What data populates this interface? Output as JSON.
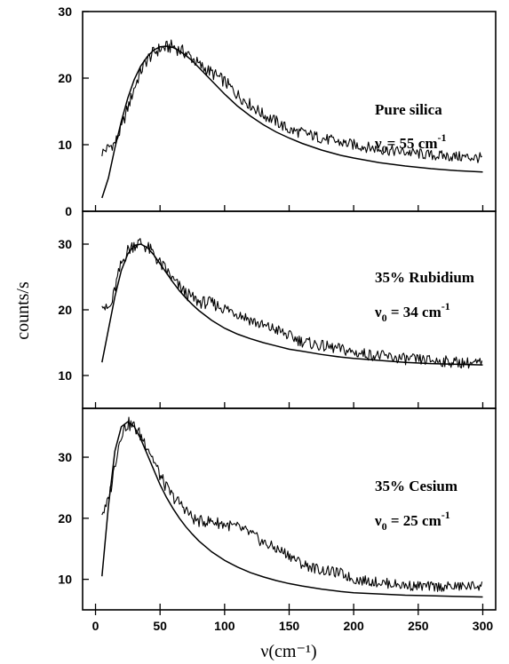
{
  "chart_data": {
    "type": "line",
    "xlabel": "ν(cm⁻¹)",
    "ylabel": "counts/s",
    "xlim": [
      -10,
      310
    ],
    "x_ticks": [
      0,
      50,
      100,
      150,
      200,
      250,
      300
    ],
    "x_tick_labels": [
      "0",
      "50",
      "100",
      "150",
      "200",
      "250",
      "300"
    ],
    "grid": false,
    "panels": [
      {
        "label_line1": "Pure silica",
        "label_line2_prefix": "ν",
        "label_line2_sub": "0",
        "label_line2_rest": "= 55 cm",
        "label_line2_sup": "-1",
        "nu0": 55,
        "ylim": [
          0,
          30
        ],
        "y_ticks": [
          0,
          10,
          20,
          30
        ],
        "y_tick_labels": [
          "0",
          "10",
          "20",
          "30"
        ],
        "series": [
          {
            "kind": "measured",
            "x": [
              5,
              10,
              15,
              20,
              25,
              30,
              35,
              40,
              45,
              50,
              55,
              60,
              65,
              70,
              75,
              80,
              90,
              100,
              110,
              120,
              130,
              140,
              150,
              160,
              175,
              190,
              200,
              220,
              240,
              260,
              280,
              300
            ],
            "values": [
              8.8,
              9.6,
              10.2,
              12.5,
              15.5,
              18.5,
              21.0,
              22.8,
              23.8,
              24.4,
              24.6,
              24.8,
              24.2,
              23.8,
              23.0,
              22.0,
              20.8,
              19.5,
              17.5,
              16.0,
              14.5,
              13.5,
              12.2,
              11.8,
              11.0,
              10.3,
              10.0,
              9.3,
              8.9,
              8.4,
              8.2,
              8.0
            ]
          },
          {
            "kind": "fit",
            "x": [
              5,
              10,
              15,
              20,
              25,
              30,
              35,
              40,
              45,
              50,
              55,
              60,
              65,
              70,
              75,
              80,
              90,
              100,
              110,
              120,
              130,
              140,
              150,
              160,
              175,
              190,
              200,
              220,
              240,
              260,
              280,
              300
            ],
            "values": [
              2.0,
              5.0,
              9.5,
              13.5,
              17.0,
              19.8,
              21.8,
              23.2,
              24.2,
              24.7,
              24.8,
              24.6,
              24.1,
              23.4,
              22.6,
              21.6,
              19.6,
              17.6,
              15.8,
              14.3,
              13.0,
              11.9,
              11.0,
              10.2,
              9.2,
              8.4,
              8.0,
              7.3,
              6.8,
              6.4,
              6.1,
              5.9
            ]
          }
        ]
      },
      {
        "label_line1": "35% Rubidium",
        "label_line2_prefix": "ν",
        "label_line2_sub": "0",
        "label_line2_rest": " = 34 cm",
        "label_line2_sup": "-1",
        "nu0": 34,
        "ylim": [
          5,
          35
        ],
        "y_ticks": [
          10,
          20,
          30
        ],
        "y_tick_labels": [
          "10",
          "20",
          "30"
        ],
        "series": [
          {
            "kind": "measured",
            "x": [
              5,
              8,
              12,
              16,
              20,
              25,
              30,
              35,
              40,
              45,
              50,
              55,
              60,
              65,
              70,
              75,
              80,
              90,
              100,
              110,
              120,
              130,
              140,
              150,
              160,
              175,
              190,
              200,
              220,
              240,
              260,
              280,
              300
            ],
            "values": [
              21.5,
              20.0,
              20.5,
              24.0,
              27.0,
              29.0,
              30.0,
              30.2,
              29.5,
              28.5,
              27.0,
              26.0,
              24.5,
              23.5,
              22.5,
              21.8,
              21.2,
              21.0,
              20.2,
              19.5,
              18.5,
              17.5,
              17.0,
              16.0,
              15.2,
              14.5,
              14.0,
              13.5,
              13.0,
              12.5,
              12.3,
              12.0,
              11.8
            ]
          },
          {
            "kind": "fit",
            "x": [
              5,
              10,
              15,
              20,
              25,
              30,
              35,
              40,
              45,
              50,
              55,
              60,
              65,
              70,
              75,
              80,
              90,
              100,
              110,
              120,
              130,
              140,
              150,
              160,
              175,
              190,
              200,
              220,
              240,
              260,
              280,
              300
            ],
            "values": [
              12.0,
              17.0,
              22.0,
              26.0,
              28.5,
              29.8,
              30.0,
              29.5,
              28.4,
              27.0,
              25.6,
              24.2,
              22.9,
              21.8,
              20.8,
              19.9,
              18.4,
              17.2,
              16.3,
              15.6,
              15.0,
              14.5,
              14.0,
              13.7,
              13.2,
              12.8,
              12.6,
              12.3,
              12.0,
              11.8,
              11.7,
              11.6
            ]
          }
        ]
      },
      {
        "label_line1": "35% Cesium",
        "label_line2_prefix": "ν",
        "label_line2_sub": "0",
        "label_line2_rest": " = 25 cm",
        "label_line2_sup": "-1",
        "nu0": 25,
        "ylim": [
          5,
          38
        ],
        "y_ticks": [
          10,
          20,
          30
        ],
        "y_tick_labels": [
          "10",
          "20",
          "30"
        ],
        "series": [
          {
            "kind": "measured",
            "x": [
              5,
              8,
              12,
              16,
              20,
              25,
              30,
              35,
              40,
              45,
              50,
              55,
              60,
              65,
              70,
              75,
              80,
              90,
              100,
              110,
              120,
              130,
              140,
              150,
              160,
              175,
              190,
              200,
              220,
              240,
              260,
              280,
              300
            ],
            "values": [
              21.0,
              21.5,
              25.0,
              30.0,
              34.0,
              35.5,
              35.0,
              33.5,
              32.0,
              29.5,
              27.0,
              25.0,
              23.5,
              22.5,
              21.5,
              20.0,
              19.5,
              19.5,
              19.0,
              18.5,
              17.5,
              16.0,
              15.0,
              14.0,
              12.5,
              11.5,
              11.0,
              10.0,
              9.5,
              9.0,
              8.8,
              8.8,
              9.0
            ]
          },
          {
            "kind": "fit",
            "x": [
              5,
              10,
              15,
              20,
              25,
              30,
              35,
              40,
              45,
              50,
              55,
              60,
              65,
              70,
              75,
              80,
              90,
              100,
              110,
              120,
              130,
              140,
              150,
              160,
              175,
              190,
              200,
              220,
              240,
              260,
              280,
              300
            ],
            "values": [
              10.5,
              22.0,
              31.0,
              35.0,
              35.8,
              35.0,
              33.0,
              30.5,
              28.0,
              25.5,
              23.4,
              21.6,
              20.0,
              18.6,
              17.4,
              16.3,
              14.5,
              13.1,
              12.0,
              11.1,
              10.4,
              9.8,
              9.3,
              8.9,
              8.4,
              8.0,
              7.8,
              7.6,
              7.4,
              7.3,
              7.2,
              7.1
            ]
          }
        ]
      }
    ]
  }
}
